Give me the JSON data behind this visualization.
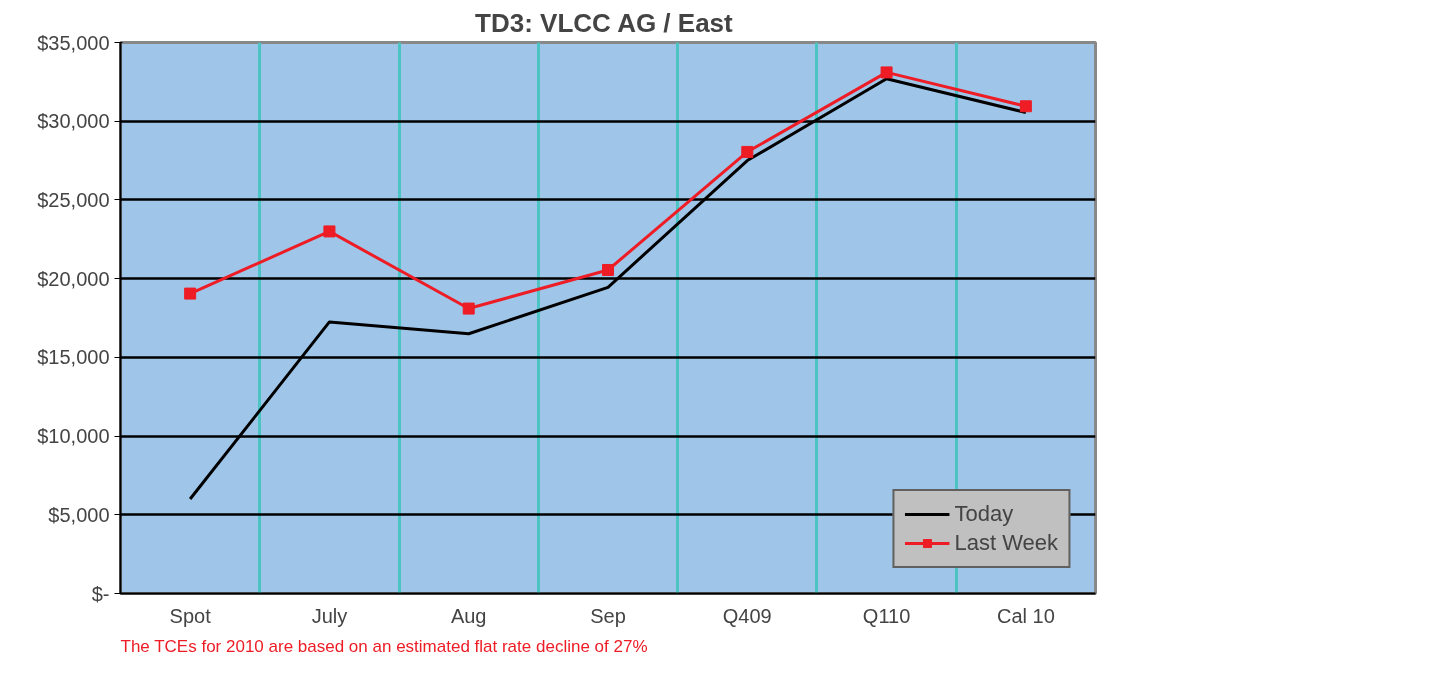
{
  "chart_data": {
    "type": "line",
    "title": "TD3:  VLCC AG / East",
    "categories": [
      "Spot",
      "July",
      "Aug",
      "Sep",
      "Q409",
      "Q110",
      "Cal 10"
    ],
    "series": [
      {
        "name": "Today",
        "color": "#000000",
        "marker": "none",
        "values": [
          6000,
          17250,
          16500,
          19450,
          27500,
          32700,
          30550
        ]
      },
      {
        "name": "Last Week",
        "color": "#ee1c25",
        "marker": "square",
        "values": [
          19050,
          23000,
          18100,
          20550,
          28050,
          33100,
          30950
        ]
      }
    ],
    "ylim": [
      0,
      35000
    ],
    "yticks": [
      {
        "value": 0,
        "label": "$-"
      },
      {
        "value": 5000,
        "label": "$5,000"
      },
      {
        "value": 10000,
        "label": "$10,000"
      },
      {
        "value": 15000,
        "label": "$15,000"
      },
      {
        "value": 20000,
        "label": "$20,000"
      },
      {
        "value": 25000,
        "label": "$25,000"
      },
      {
        "value": 30000,
        "label": "$30,000"
      },
      {
        "value": 35000,
        "label": "$35,000"
      }
    ],
    "grid": true,
    "legend": "bottom right",
    "line_style": "solid",
    "annotations": [
      "The TCEs for 2010 are based on an estimated flat rate decline of 27%"
    ]
  }
}
